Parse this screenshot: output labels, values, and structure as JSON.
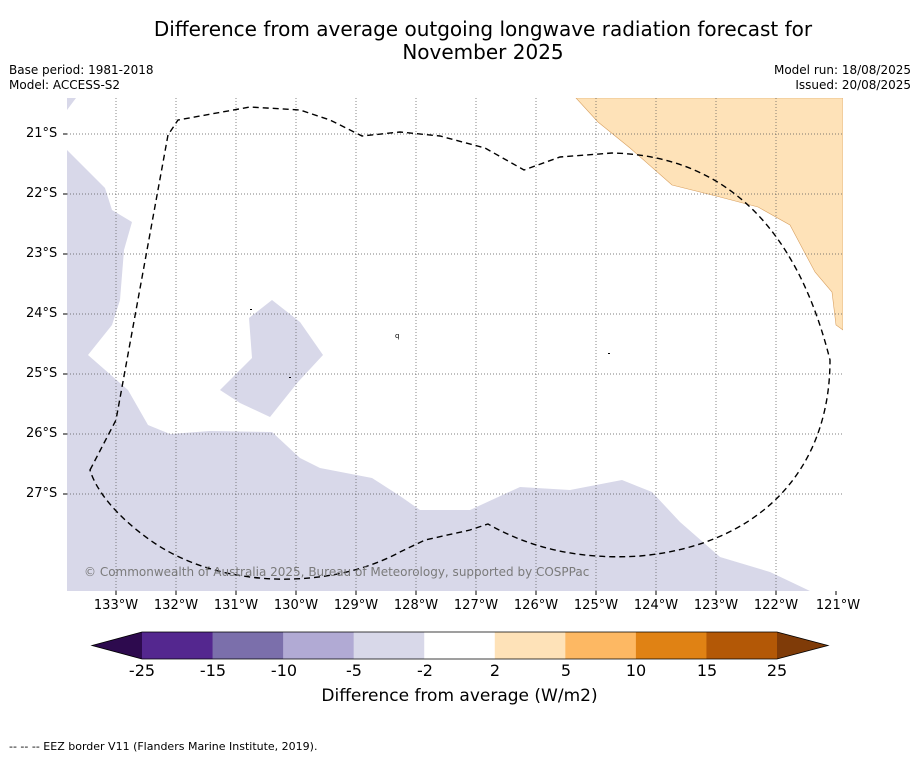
{
  "title_line1": "Difference from average outgoing longwave radiation forecast for",
  "title_line2": "November 2025",
  "base_period": "Base period: 1981-2018",
  "model": "Model: ACCESS-S2",
  "model_run": "Model run: 18/08/2025",
  "issued": "Issued: 20/08/2025",
  "lat_ticks": [
    "21°S",
    "22°S",
    "23°S",
    "24°S",
    "25°S",
    "26°S",
    "27°S"
  ],
  "lon_ticks": [
    "133°W",
    "132°W",
    "131°W",
    "130°W",
    "129°W",
    "128°W",
    "127°W",
    "126°W",
    "125°W",
    "124°W",
    "123°W",
    "122°W",
    "121°W"
  ],
  "copyright": "© Commonwealth of Australia 2025, Bureau of Meteorology, supported by COSPPac",
  "colorbar": {
    "ticks": [
      "-25",
      "-15",
      "-10",
      "-5",
      "-2",
      "2",
      "5",
      "10",
      "15",
      "25"
    ],
    "label": "Difference from average (W/m2)",
    "colors": [
      "#2d0a4e",
      "#54278f",
      "#7b6fab",
      "#b1aad4",
      "#d8d8e9",
      "#ffffff",
      "#fee2b8",
      "#fdb863",
      "#e08214",
      "#b35806",
      "#7f3b08"
    ]
  },
  "footnote": "--  --  -- EEZ border V11 (Flanders Marine Institute, 2019)."
}
